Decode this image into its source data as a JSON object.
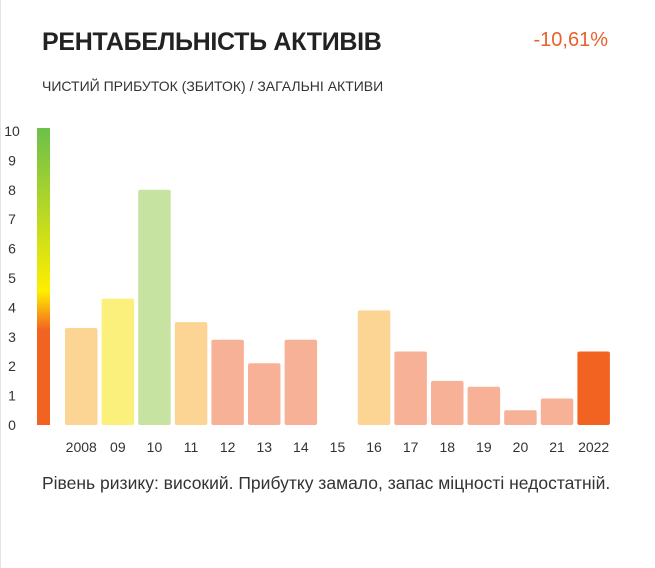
{
  "header": {
    "title": "РЕНТАБЕЛЬНІСТЬ АКТИВІВ",
    "value": "-10,61%",
    "subtitle": "ЧИСТИЙ ПРИБУТОК (ЗБИТОК) / ЗАГАЛЬНІ АКТИВИ"
  },
  "colors": {
    "value": "#e8612d",
    "scale_top": "#6cc04a",
    "scale_mid": "#ffee00",
    "scale_bottom": "#f26322",
    "bar_low": "#f7b196",
    "bar_mid": "#fcd594",
    "bar_good": "#fbf07c",
    "bar_best": "#c7e3a1",
    "bar_current": "#f26322"
  },
  "chart_data": {
    "type": "bar",
    "categories": [
      "2008",
      "09",
      "10",
      "11",
      "12",
      "13",
      "14",
      "15",
      "16",
      "17",
      "18",
      "19",
      "20",
      "21",
      "2022"
    ],
    "values": [
      3.3,
      4.3,
      8.0,
      3.5,
      2.9,
      2.1,
      2.9,
      0,
      3.9,
      2.5,
      1.5,
      1.3,
      0.5,
      0.9,
      2.5
    ],
    "bar_colors": [
      "#fcd594",
      "#fbf07c",
      "#c7e3a1",
      "#fcd594",
      "#f7b196",
      "#f7b196",
      "#f7b196",
      "#f7b196",
      "#fcd594",
      "#f7b196",
      "#f7b196",
      "#f7b196",
      "#f7b196",
      "#f7b196",
      "#f26322"
    ],
    "yticks": [
      "0",
      "1",
      "2",
      "3",
      "4",
      "5",
      "6",
      "7",
      "8",
      "9",
      "10"
    ],
    "ylim": [
      0,
      10
    ],
    "grid": false,
    "legend": "none"
  },
  "note": {
    "text": "Рівень ризику: високий. Прибутку замало, запас міцності недостатній."
  }
}
